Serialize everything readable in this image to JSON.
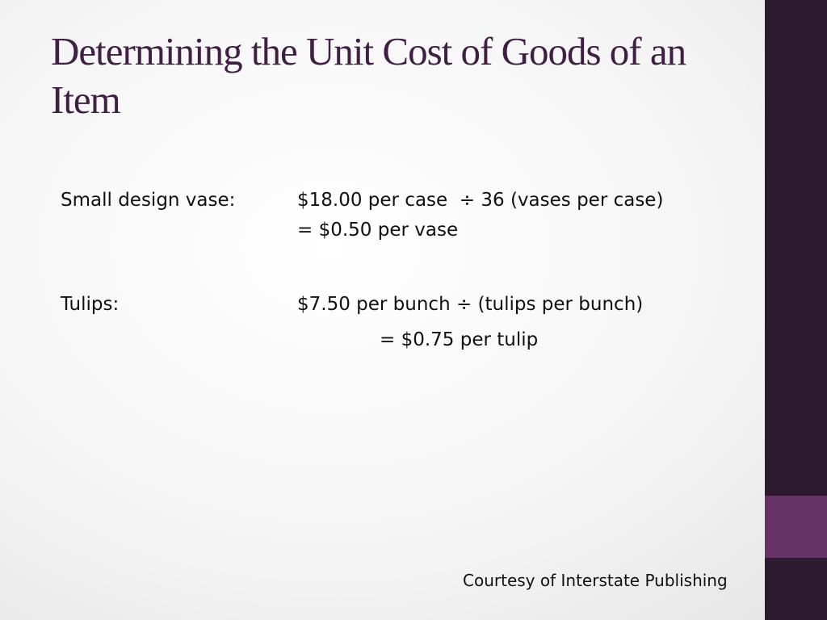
{
  "title": "Determining the Unit Cost of Goods of an Item",
  "items": [
    {
      "label": "Small design vase:",
      "line1": "$18.00 per case  ÷ 36 (vases per case)",
      "line2": "= $0.50 per vase"
    },
    {
      "label": "Tulips:",
      "line1": "$7.50 per bunch ÷ (tulips per bunch)",
      "line2": "= $0.75 per tulip"
    }
  ],
  "footer": "Courtesy of Interstate Publishing"
}
